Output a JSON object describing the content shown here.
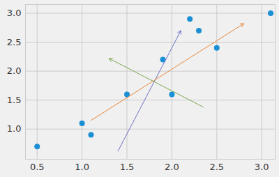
{
  "chart_data": {
    "type": "scatter",
    "x": [
      0.5,
      1.0,
      1.1,
      1.5,
      1.9,
      2.0,
      2.2,
      2.3,
      2.5,
      3.1
    ],
    "values": [
      0.7,
      1.1,
      0.9,
      1.6,
      2.2,
      1.6,
      2.9,
      2.7,
      2.4,
      3.0
    ],
    "color": "#1a8fd5",
    "marker": "circle",
    "arrows": [
      {
        "x1": 1.4,
        "y1": 0.62,
        "x2": 2.1,
        "y2": 2.7,
        "color": "#6a70c6"
      },
      {
        "x1": 1.1,
        "y1": 1.15,
        "x2": 2.8,
        "y2": 2.82,
        "color": "#e8873a"
      },
      {
        "x1": 2.35,
        "y1": 1.38,
        "x2": 1.3,
        "y2": 2.22,
        "color": "#7aa84e"
      }
    ],
    "xlim": [
      0.37,
      3.15
    ],
    "ylim": [
      0.48,
      3.15
    ],
    "xticks": [
      0.5,
      {
        "value": 1.0,
        "label": "1.0"
      },
      1.5,
      {
        "value": 2.0,
        "label": "2.0"
      },
      2.5,
      {
        "value": 3.0,
        "label": "3.0"
      }
    ],
    "yticks": [
      {
        "value": 1.0,
        "label": "1.0"
      },
      1.5,
      {
        "value": 2.0,
        "label": "2.0"
      },
      2.5,
      {
        "value": 3.0,
        "label": "3.0"
      }
    ],
    "grid": true
  }
}
